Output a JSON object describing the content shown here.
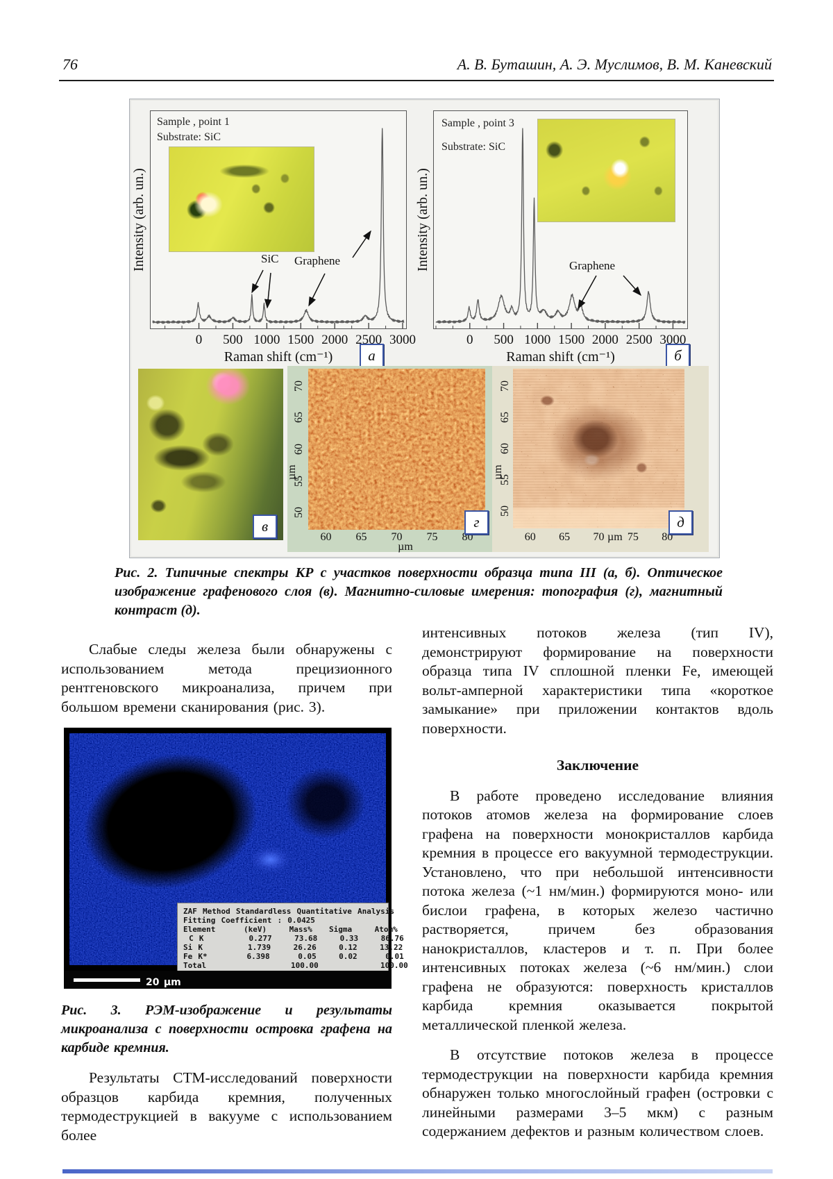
{
  "page": {
    "number": "76",
    "running_authors": "А. В. Буташин, А. Э. Муслимов, В. М. Каневский"
  },
  "figure2": {
    "caption": "Рис. 2. Типичные спектры КР с участков поверхности образца типа III (а, б). Оптическое изображение графенового слоя (в). Магнитно-силовые имерения: топография (г), магнитный контраст (д).",
    "panel_a": {
      "letter": "а",
      "sample_line1": "Sample , point 1",
      "sample_line2": "Substrate: SiC",
      "ylabel": "Intensity (arb. un.)",
      "xlabel": "Raman shift (cm⁻¹)",
      "label_sic": "SiC",
      "label_graphene": "Graphene"
    },
    "panel_b": {
      "letter": "б",
      "sample_line1": "Sample , point 3",
      "sample_line2": "Substrate: SiC",
      "ylabel": "Intensity (arb. un.)",
      "xlabel": "Raman shift (cm⁻¹)",
      "label_graphene": "Graphene"
    },
    "panel_v": {
      "letter": "в"
    },
    "panel_g": {
      "letter": "г"
    },
    "panel_d": {
      "letter": "д"
    }
  },
  "chart_data": [
    {
      "type": "line",
      "title": "Raman spectrum, sample point 1 (panel а)",
      "xlabel": "Raman shift (cm⁻¹)",
      "ylabel": "Intensity (arb. un.)",
      "xlim": [
        -680,
        3020
      ],
      "xticks": [
        0,
        500,
        1000,
        1500,
        2000,
        2500,
        3000
      ],
      "peaks": [
        {
          "x": -10,
          "h": 0.095,
          "w": 20
        },
        {
          "x": 150,
          "h": 0.03,
          "w": 35
        },
        {
          "x": 500,
          "h": 0.022,
          "w": 35
        },
        {
          "x": 780,
          "h": 0.14,
          "w": 13
        },
        {
          "x": 960,
          "h": 0.095,
          "w": 14
        },
        {
          "x": 1580,
          "h": 0.06,
          "w": 40
        },
        {
          "x": 2450,
          "h": 0.03,
          "w": 35
        },
        {
          "x": 2700,
          "h": 1.0,
          "w": 17
        }
      ],
      "annotations": [
        {
          "text": "SiC",
          "targets_cm1": [
            780,
            960
          ]
        },
        {
          "text": "Graphene",
          "targets_cm1": [
            1580,
            2700
          ]
        }
      ]
    },
    {
      "type": "line",
      "title": "Raman spectrum, sample point 3 (panel б)",
      "xlabel": "Raman shift (cm⁻¹)",
      "ylabel": "Intensity (arb. un.)",
      "xlim": [
        -500,
        3180
      ],
      "xticks": [
        0,
        500,
        1000,
        1500,
        2000,
        2500,
        3000
      ],
      "peaks": [
        {
          "x": -10,
          "h": 0.07,
          "w": 20
        },
        {
          "x": 120,
          "h": 0.11,
          "w": 22
        },
        {
          "x": 465,
          "h": 0.13,
          "w": 55
        },
        {
          "x": 620,
          "h": 0.055,
          "w": 28
        },
        {
          "x": 780,
          "h": 1.0,
          "w": 15
        },
        {
          "x": 950,
          "h": 0.62,
          "w": 15
        },
        {
          "x": 1090,
          "h": 0.05,
          "w": 55
        },
        {
          "x": 1300,
          "h": 0.045,
          "w": 45
        },
        {
          "x": 1510,
          "h": 0.13,
          "w": 50
        },
        {
          "x": 1640,
          "h": 0.07,
          "w": 35
        },
        {
          "x": 2640,
          "h": 0.155,
          "w": 30
        }
      ],
      "annotations": [
        {
          "text": "Graphene",
          "targets_cm1": [
            1550,
            2640
          ]
        }
      ]
    },
    {
      "type": "heatmap",
      "title": "Magnetic-force microscopy: topography (panel г)",
      "xticks": [
        60,
        65,
        70,
        75,
        80
      ],
      "yticks": [
        50,
        55,
        60,
        65,
        70
      ],
      "unit": "µm"
    },
    {
      "type": "heatmap",
      "title": "Magnetic-force microscopy: magnetic contrast (panel д)",
      "xticks": [
        60,
        65,
        70,
        75,
        80
      ],
      "yticks": [
        50,
        55,
        60,
        65,
        70
      ],
      "unit": "µm"
    }
  ],
  "text": {
    "left_col": {
      "para1": "Слабые следы железа были обнаружены с использованием метода прецизионного рентгеновского микроанализа, причем при большом времени сканирования (рис. 3).",
      "fig3_caption": "Рис. 3. РЭМ-изображение и результаты микроанализа с поверхности островка графена на карбиде кремния.",
      "para2": "Результаты СТМ-исследований поверхности образцов карбида кремния, полученных термодеструкцией в вакууме с использованием более"
    },
    "right_col": {
      "para1": "интенсивных потоков железа (тип IV), демонстрируют формирование на поверхности образца типа IV сплошной пленки Fe, имеющей вольт-амперной характеристики типа «короткое замыкание» при приложении контактов вдоль поверхности.",
      "heading": "Заключение",
      "para2": "В работе проведено исследование влияния потоков атомов железа на формирование слоев графена на поверхности монокристаллов карбида кремния в процессе его вакуумной термодеструкции. Установлено, что при небольшой интенсивности потока железа (~1 нм/мин.) формируются моно- или бислои графена, в которых железо частично растворяется, причем без образования нанокристаллов, кластеров и т. п. При более интенсивных потоках железа (~6 нм/мин.) слои графена не образуются: поверхность кристаллов карбида кремния оказывается покрытой металлической пленкой железа.",
      "para3": "В отсутствие потоков железа в процессе термодеструкции на поверхности карбида кремния обнаружен только многослойный графен (островки с линейными размерами 3–5 мкм) с разным содержанием дефектов и разным количеством слоев."
    }
  },
  "figure3": {
    "zaf_table": {
      "title": "ZAF Method Standardless Quantitative Analysis",
      "subtitle": "Fitting Coefficient : 0.0425",
      "headers": [
        "Element",
        "(keV)",
        "Mass%",
        "Sigma",
        "Atom%"
      ],
      "rows": [
        [
          " C K",
          "0.277",
          "73.68",
          "0.33",
          "86.76"
        ],
        [
          "Si K",
          "1.739",
          "26.26",
          "0.12",
          "13.22"
        ],
        [
          "Fe K*",
          "6.398",
          "0.05",
          "0.02",
          "0.01"
        ],
        [
          "Total",
          "",
          "100.00",
          "",
          "100.00"
        ]
      ],
      "scale_bar_label": "20 µm"
    }
  },
  "colors": {
    "letter_box_border": "#3a55a4",
    "figure_background": "#f2f2ef",
    "mfm_topography_panel_bg": "#c9d8c2",
    "mfm_contrast_panel_bg": "#e4e1cf",
    "sem_noise_blue": "#2233cc",
    "footer_accent_bar": "#4a66c8"
  }
}
